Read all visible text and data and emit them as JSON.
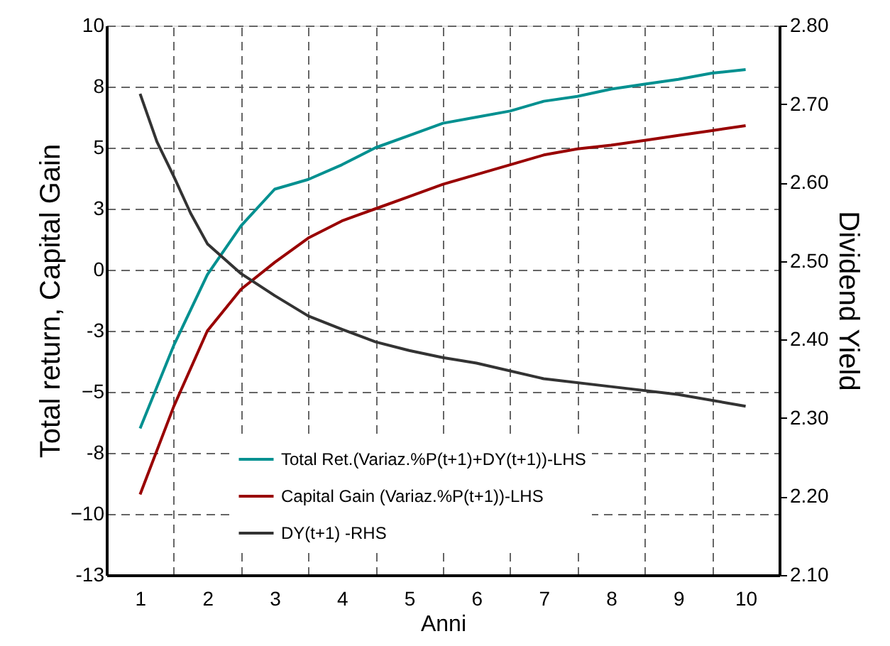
{
  "chart_data": {
    "type": "line",
    "xlabel": "Anni",
    "ylabel": "Total return, Capital Gain",
    "y2label": "Dividend Yield",
    "xlim": [
      0.5,
      10.5
    ],
    "xticks": [
      1,
      2,
      3,
      4,
      5,
      6,
      7,
      8,
      9,
      10
    ],
    "ylim": [
      -12.5,
      10
    ],
    "yticks": [
      {
        "value": -12.5,
        "label": "-13"
      },
      -10,
      {
        "value": -7.5,
        "label": "-8"
      },
      -5,
      {
        "value": -2.5,
        "label": "-3"
      },
      0,
      {
        "value": 2.5,
        "label": "3"
      },
      5,
      {
        "value": 7.5,
        "label": "8"
      },
      10
    ],
    "y2lim": [
      2.1,
      2.8
    ],
    "y2ticks": [
      {
        "value": 2.1,
        "label": "2.10"
      },
      {
        "value": 2.2,
        "label": "2.20"
      },
      {
        "value": 2.3,
        "label": "2.30"
      },
      {
        "value": 2.4,
        "label": "2.40"
      },
      {
        "value": 2.5,
        "label": "2.50"
      },
      {
        "value": 2.6,
        "label": "2.60"
      },
      {
        "value": 2.7,
        "label": "2.70"
      },
      {
        "value": 2.8,
        "label": "2.80"
      }
    ],
    "grid": true,
    "legend": "bottom",
    "line_style": "solid",
    "marker": "none",
    "series": [
      {
        "name": "Total Ret.(Variaz.%P(t+1)+DY(t+1))-LHS",
        "color": "#009090",
        "x": [
          1,
          1.5,
          2,
          2.5,
          3,
          3.5,
          4,
          4.5,
          5,
          5.5,
          6,
          6.5,
          7,
          7.5,
          8,
          8.5,
          9,
          9.5,
          10
        ],
        "values": [
          -6.5,
          -3.1,
          -0.2,
          1.8,
          3.3,
          3.7,
          4.3,
          5.0,
          5.5,
          6.0,
          6.25,
          6.5,
          6.9,
          7.1,
          7.4,
          7.6,
          7.8,
          8.05,
          8.2
        ]
      },
      {
        "name": "Capital Gain (Variaz.%P(t+1))-LHS",
        "color": "#990000",
        "x": [
          1,
          1.5,
          2,
          2.5,
          3,
          3.5,
          4,
          4.5,
          5,
          5.5,
          6,
          6.5,
          7,
          7.5,
          8,
          8.5,
          9,
          9.5,
          10
        ],
        "values": [
          -9.2,
          -5.6,
          -2.5,
          -0.8,
          0.3,
          1.3,
          2.0,
          2.5,
          3.0,
          3.5,
          3.9,
          4.3,
          4.7,
          4.95,
          5.1,
          5.3,
          5.5,
          5.7,
          5.9
        ]
      },
      {
        "name": "DY(t+1) -RHS",
        "color": "#333333",
        "axis": "y2",
        "x": [
          1,
          1.25,
          1.5,
          1.75,
          2,
          2.5,
          3,
          3.5,
          4,
          4.5,
          5,
          5.5,
          6,
          7,
          8,
          9,
          10
        ],
        "values": [
          2.713,
          2.652,
          2.608,
          2.561,
          2.522,
          2.484,
          2.456,
          2.43,
          2.413,
          2.397,
          2.386,
          2.377,
          2.37,
          2.35,
          2.34,
          2.33,
          2.315
        ]
      }
    ]
  }
}
